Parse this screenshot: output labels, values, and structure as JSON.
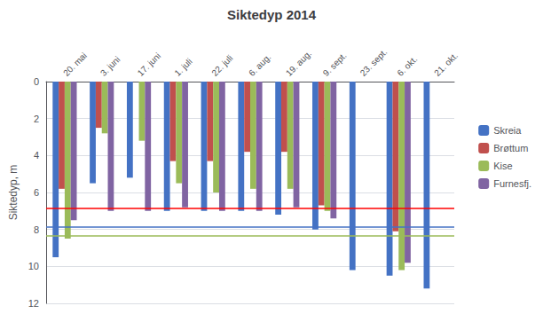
{
  "chart_data": {
    "type": "bar",
    "title": "Siktedyp 2014",
    "y_label": "Siktedyp, m",
    "categories": [
      "20. mai",
      "3. juni",
      "17. juni",
      "1. juli",
      "22. juli",
      "6. aug.",
      "19. aug.",
      "9. sept.",
      "23. sept.",
      "6. okt.",
      "21. okt."
    ],
    "series": [
      {
        "name": "Skreia",
        "color": "#4472c4",
        "values": [
          9.5,
          5.5,
          5.2,
          7.0,
          7.0,
          7.0,
          7.2,
          8.0,
          10.2,
          10.5,
          11.2
        ]
      },
      {
        "name": "Brøttum",
        "color": "#c0504d",
        "values": [
          5.8,
          2.5,
          0.0,
          4.3,
          4.3,
          3.8,
          3.8,
          6.7,
          0.0,
          8.1,
          0.0
        ]
      },
      {
        "name": "Kise",
        "color": "#9bbb59",
        "values": [
          8.5,
          2.8,
          3.2,
          5.5,
          6.0,
          5.8,
          5.8,
          7.0,
          0.0,
          10.2,
          0.0
        ]
      },
      {
        "name": "Furnesfj.",
        "color": "#8064a2",
        "values": [
          7.5,
          7.0,
          7.0,
          6.8,
          7.0,
          7.0,
          6.8,
          7.4,
          0.0,
          9.8,
          0.0
        ]
      }
    ],
    "hlines": [
      {
        "value": 6.85,
        "color": "#ff0000"
      },
      {
        "value": 7.85,
        "color": "#4472c4"
      },
      {
        "value": 8.35,
        "color": "#9bbb59"
      }
    ],
    "ylim": [
      12,
      0
    ],
    "yticks": [
      0,
      2,
      4,
      6,
      8,
      10,
      12
    ],
    "grid": true,
    "legend": "right"
  }
}
